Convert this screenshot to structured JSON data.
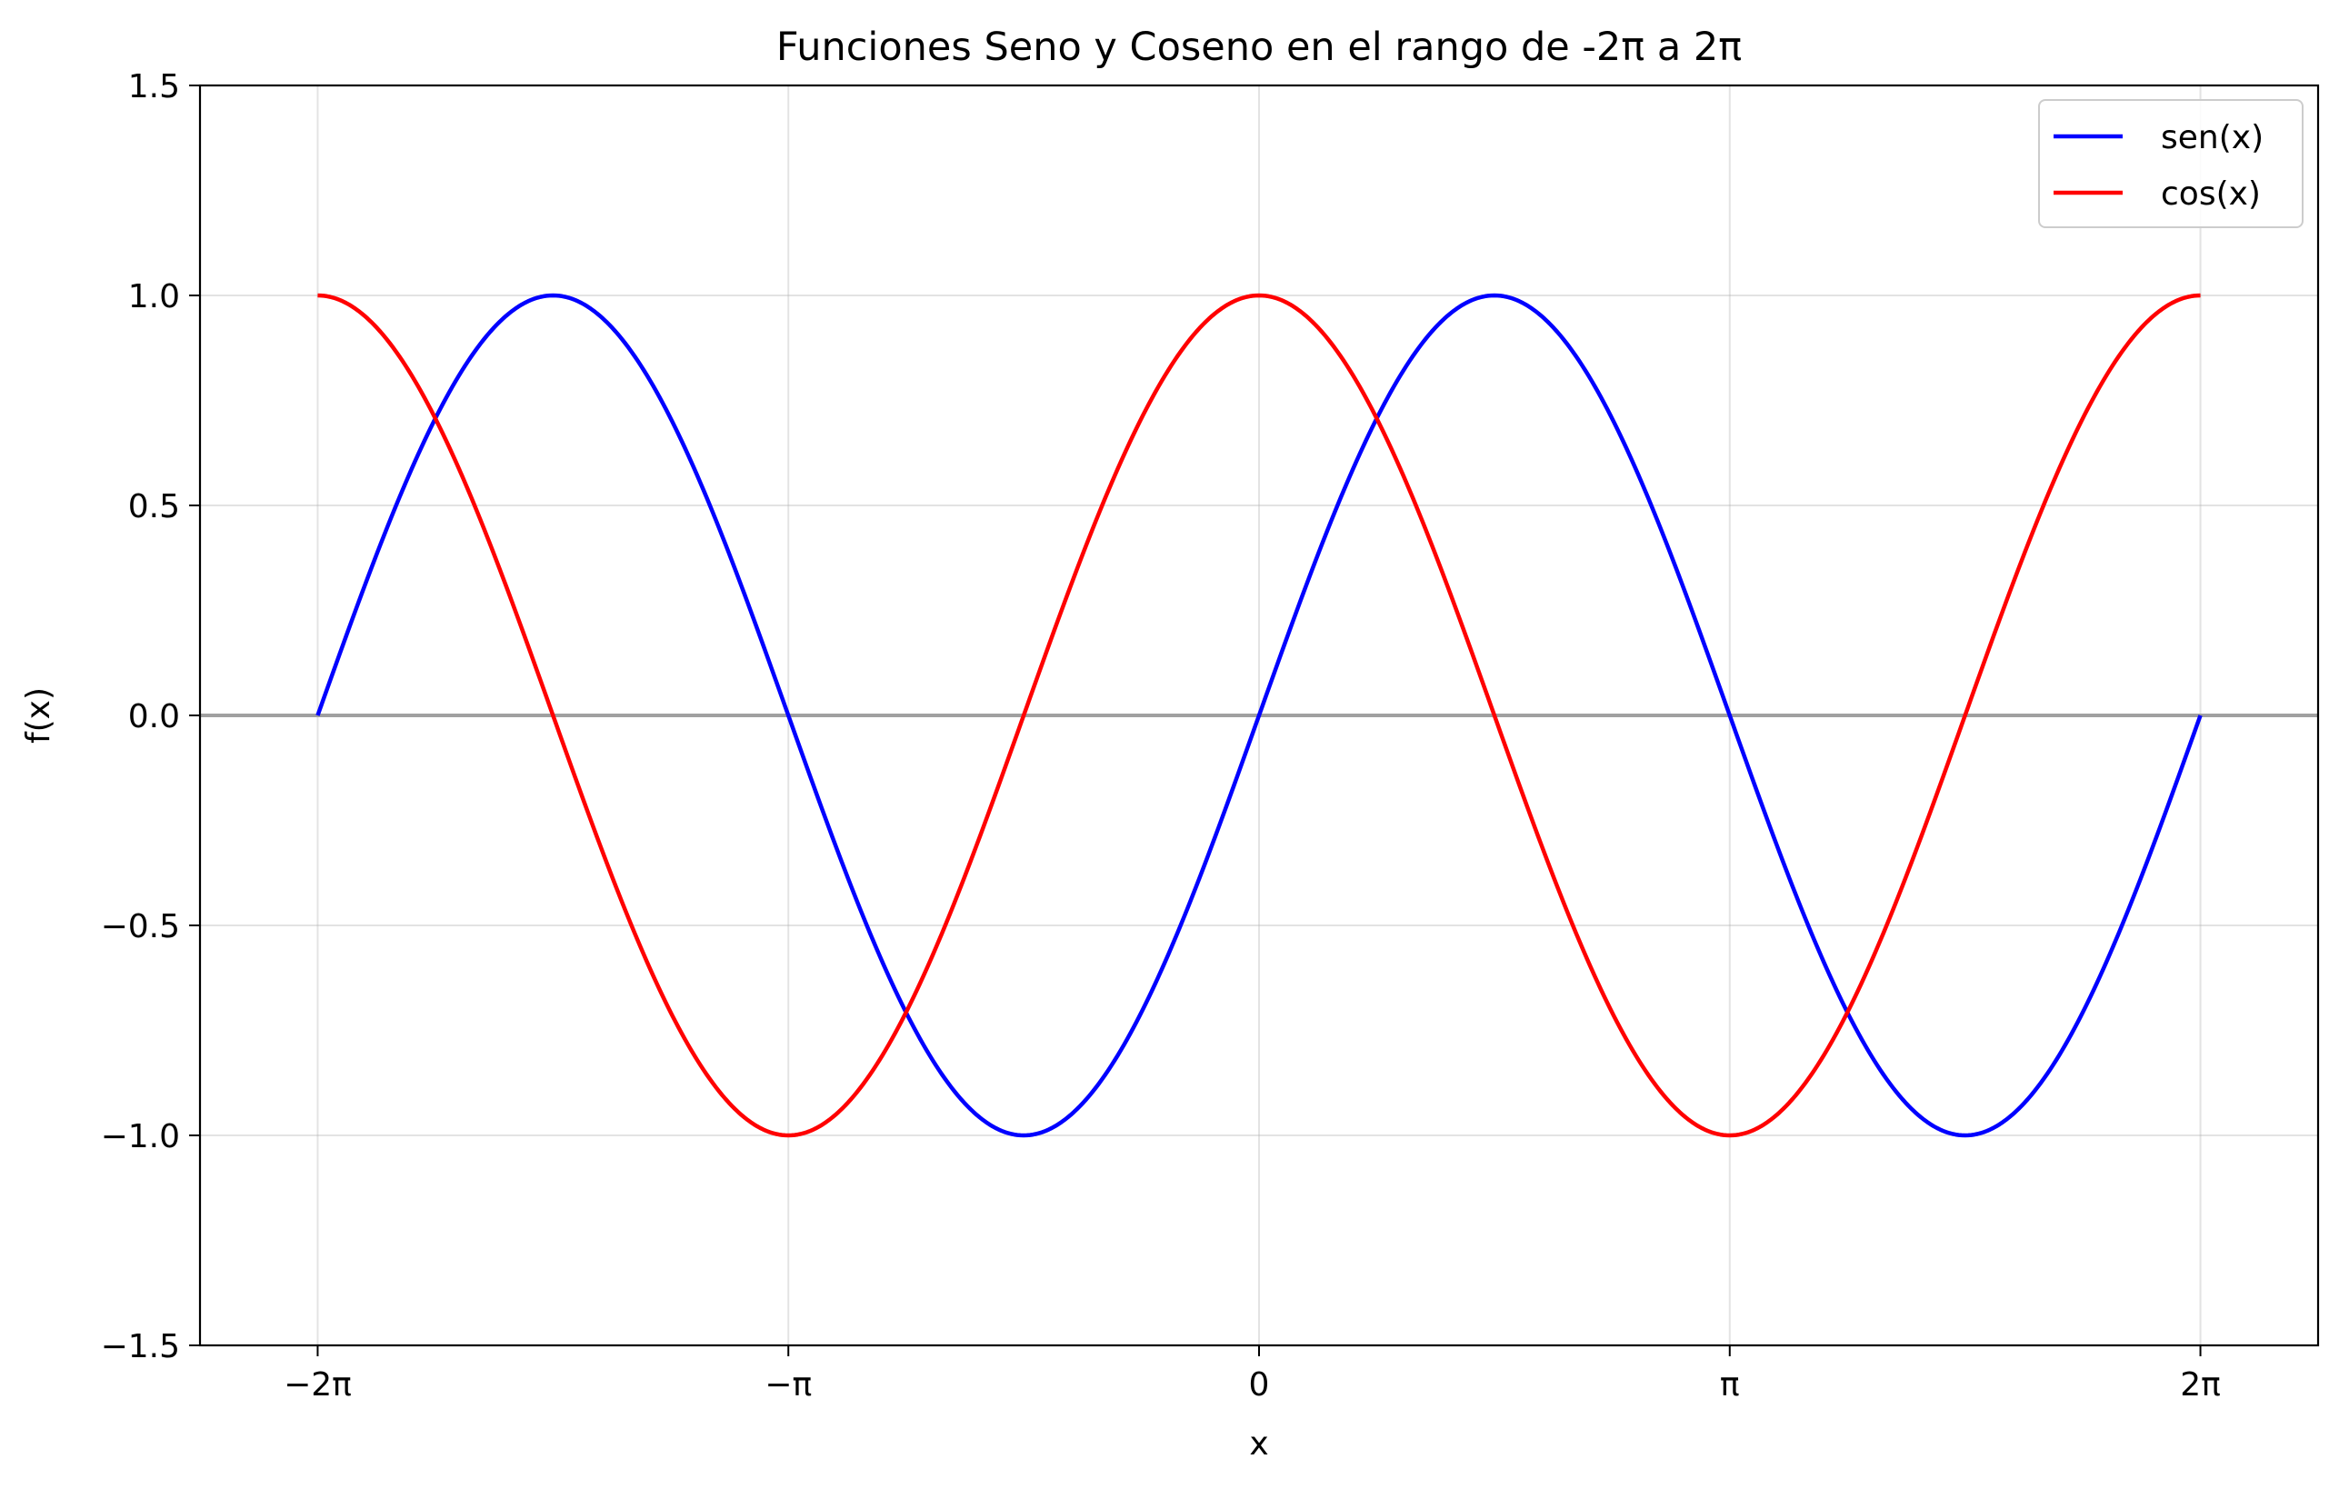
{
  "chart_data": {
    "type": "line",
    "title": "Funciones Seno y Coseno en el rango de -2π a 2π",
    "xlabel": "x",
    "ylabel": "f(x)",
    "xlim": [
      -7.0686,
      7.0686
    ],
    "ylim": [
      -1.5,
      1.5
    ],
    "x_domain": [
      -6.2832,
      6.2832
    ],
    "x_ticks": [
      {
        "value": -6.2832,
        "label": "−2π"
      },
      {
        "value": -3.1416,
        "label": "−π"
      },
      {
        "value": 0,
        "label": "0"
      },
      {
        "value": 3.1416,
        "label": "π"
      },
      {
        "value": 6.2832,
        "label": "2π"
      }
    ],
    "y_ticks": [
      {
        "value": 1.5,
        "label": "1.5"
      },
      {
        "value": 1.0,
        "label": "1.0"
      },
      {
        "value": 0.5,
        "label": "0.5"
      },
      {
        "value": 0.0,
        "label": "0.0"
      },
      {
        "value": -0.5,
        "label": "−0.5"
      },
      {
        "value": -1.0,
        "label": "−1.0"
      },
      {
        "value": -1.5,
        "label": "−1.5"
      }
    ],
    "grid": true,
    "zero_line": {
      "y": 0,
      "color": "#a0a0a0"
    },
    "legend_position": "top-right",
    "series": [
      {
        "name": "sen(x)",
        "function": "sin",
        "color": "#0000ff"
      },
      {
        "name": "cos(x)",
        "function": "cos",
        "color": "#ff0000"
      }
    ]
  }
}
